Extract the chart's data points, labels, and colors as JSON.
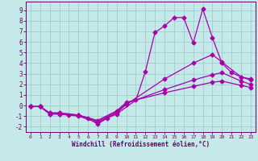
{
  "xlabel": "Windchill (Refroidissement éolien,°C)",
  "xlim": [
    -0.5,
    23.5
  ],
  "ylim": [
    -2.5,
    9.8
  ],
  "xticks": [
    0,
    1,
    2,
    3,
    4,
    5,
    6,
    7,
    8,
    9,
    10,
    11,
    12,
    13,
    14,
    15,
    16,
    17,
    18,
    19,
    20,
    21,
    22,
    23
  ],
  "yticks": [
    -2,
    -1,
    0,
    1,
    2,
    3,
    4,
    5,
    6,
    7,
    8,
    9
  ],
  "bg_color": "#c5e8e8",
  "grid_color": "#9ecece",
  "line_color": "#aa00aa",
  "line_width": 0.9,
  "marker": "D",
  "marker_size": 2.5,
  "lines": [
    {
      "x": [
        0,
        1,
        2,
        3,
        4,
        5,
        6,
        7,
        8,
        9,
        11,
        12,
        13,
        14,
        15,
        16,
        17,
        18,
        19,
        20,
        21,
        22,
        23
      ],
      "y": [
        -0.1,
        -0.1,
        -0.8,
        -0.8,
        -0.9,
        -0.9,
        -1.2,
        -1.75,
        -1.2,
        -0.8,
        0.5,
        3.2,
        6.9,
        7.5,
        8.3,
        8.3,
        5.9,
        9.1,
        6.4,
        4.0,
        3.1,
        2.7,
        2.5
      ]
    },
    {
      "x": [
        0,
        1,
        2,
        3,
        5,
        7,
        9,
        10,
        14,
        17,
        19,
        20,
        22,
        23
      ],
      "y": [
        -0.1,
        -0.1,
        -0.8,
        -0.8,
        -1.0,
        -1.6,
        -0.7,
        0.1,
        2.5,
        4.0,
        4.8,
        4.1,
        2.7,
        2.4
      ]
    },
    {
      "x": [
        0,
        1,
        2,
        3,
        5,
        7,
        9,
        10,
        14,
        17,
        19,
        20,
        22,
        23
      ],
      "y": [
        -0.1,
        -0.1,
        -0.7,
        -0.7,
        -0.9,
        -1.5,
        -0.6,
        0.2,
        1.5,
        2.4,
        2.9,
        3.1,
        2.3,
        2.0
      ]
    },
    {
      "x": [
        0,
        1,
        2,
        3,
        5,
        7,
        9,
        10,
        14,
        17,
        19,
        20,
        22,
        23
      ],
      "y": [
        -0.1,
        -0.1,
        -0.7,
        -0.7,
        -0.9,
        -1.4,
        -0.5,
        0.3,
        1.2,
        1.8,
        2.2,
        2.3,
        1.9,
        1.7
      ]
    }
  ]
}
